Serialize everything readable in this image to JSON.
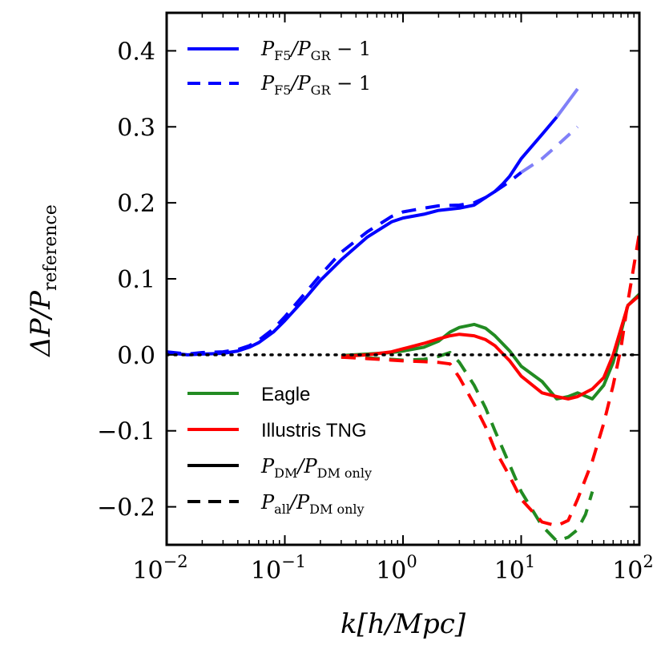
{
  "chart_data": {
    "type": "line",
    "title": "",
    "xlabel": "k[h/Mpc]",
    "ylabel": "ΔP/P_reference",
    "xscale": "log",
    "xlim": [
      0.01,
      100
    ],
    "ylim": [
      -0.25,
      0.45
    ],
    "x_ticks": [
      {
        "value": 0.01,
        "base": "10",
        "exp": "−2"
      },
      {
        "value": 0.1,
        "base": "10",
        "exp": "−1"
      },
      {
        "value": 1,
        "base": "10",
        "exp": "0"
      },
      {
        "value": 10,
        "base": "10",
        "exp": "1"
      },
      {
        "value": 100,
        "base": "10",
        "exp": "2"
      }
    ],
    "y_ticks": [
      {
        "value": 0.4,
        "label": "0.4"
      },
      {
        "value": 0.3,
        "label": "0.3"
      },
      {
        "value": 0.2,
        "label": "0.2"
      },
      {
        "value": 0.1,
        "label": "0.1"
      },
      {
        "value": 0.0,
        "label": "0.0"
      },
      {
        "value": -0.1,
        "label": "−0.1"
      },
      {
        "value": -0.2,
        "label": "−0.2"
      }
    ],
    "reference_line": {
      "y": 0,
      "style": "dotted",
      "color": "#000000"
    },
    "series": [
      {
        "name": "F5 solid",
        "color": "#0000ff",
        "style": "solid",
        "x": [
          0.01,
          0.015,
          0.02,
          0.03,
          0.04,
          0.05,
          0.06,
          0.08,
          0.1,
          0.15,
          0.2,
          0.3,
          0.5,
          0.8,
          1.0,
          1.5,
          2.0,
          3.0,
          4.0,
          5.0,
          6.0,
          7.0,
          8.0,
          10.0,
          15.0,
          20.0
        ],
        "y": [
          0.003,
          0.0,
          0.001,
          0.002,
          0.005,
          0.01,
          0.016,
          0.03,
          0.045,
          0.075,
          0.098,
          0.125,
          0.155,
          0.175,
          0.18,
          0.185,
          0.19,
          0.193,
          0.197,
          0.207,
          0.215,
          0.225,
          0.235,
          0.258,
          0.29,
          0.313
        ]
      },
      {
        "name": "F5 solid faded",
        "color": "#8080f8",
        "style": "solid",
        "x": [
          20.0,
          30.0
        ],
        "y": [
          0.313,
          0.35
        ]
      },
      {
        "name": "F5 dashed",
        "color": "#0000ff",
        "style": "dashed",
        "x": [
          0.01,
          0.015,
          0.02,
          0.03,
          0.04,
          0.05,
          0.06,
          0.08,
          0.1,
          0.15,
          0.2,
          0.3,
          0.5,
          0.8,
          1.0,
          1.5,
          2.0,
          3.0,
          4.0,
          5.0,
          6.0,
          7.0,
          8.0,
          10.0
        ],
        "y": [
          0.004,
          0.001,
          0.003,
          0.004,
          0.007,
          0.012,
          0.019,
          0.034,
          0.05,
          0.082,
          0.105,
          0.135,
          0.162,
          0.182,
          0.188,
          0.193,
          0.196,
          0.197,
          0.2,
          0.207,
          0.215,
          0.222,
          0.228,
          0.24
        ]
      },
      {
        "name": "F5 dashed faded",
        "color": "#8080f8",
        "style": "dashed",
        "x": [
          10.0,
          15.0,
          20.0,
          30.0
        ],
        "y": [
          0.24,
          0.258,
          0.275,
          0.3
        ]
      },
      {
        "name": "Eagle DM",
        "color": "#228b22",
        "style": "solid",
        "x": [
          0.3,
          0.5,
          0.8,
          1.0,
          1.5,
          2.0,
          2.5,
          3.0,
          4.0,
          5.0,
          6.0,
          8.0,
          10.0,
          15.0,
          20.0,
          25.0,
          30.0,
          40.0,
          50.0,
          60.0,
          70.0,
          80.0,
          100.0
        ],
        "y": [
          -0.001,
          0.001,
          0.003,
          0.005,
          0.01,
          0.018,
          0.03,
          0.036,
          0.04,
          0.035,
          0.025,
          0.005,
          -0.015,
          -0.035,
          -0.058,
          -0.055,
          -0.05,
          -0.058,
          -0.04,
          -0.01,
          0.03,
          0.065,
          0.08
        ]
      },
      {
        "name": "TNG DM",
        "color": "#ff0000",
        "style": "solid",
        "x": [
          0.3,
          0.5,
          0.8,
          1.0,
          1.5,
          2.0,
          2.5,
          3.0,
          4.0,
          5.0,
          6.0,
          8.0,
          10.0,
          15.0,
          20.0,
          25.0,
          30.0,
          40.0,
          50.0,
          60.0,
          70.0,
          80.0,
          100.0
        ],
        "y": [
          -0.002,
          0.0,
          0.004,
          0.008,
          0.015,
          0.021,
          0.025,
          0.027,
          0.025,
          0.02,
          0.012,
          -0.008,
          -0.028,
          -0.05,
          -0.055,
          -0.058,
          -0.055,
          -0.045,
          -0.03,
          0.0,
          0.035,
          0.065,
          0.078
        ]
      },
      {
        "name": "Eagle all",
        "color": "#228b22",
        "style": "dashed",
        "x": [
          0.3,
          0.5,
          0.8,
          1.0,
          1.5,
          2.0,
          2.5,
          3.0,
          4.0,
          5.0,
          6.0,
          8.0,
          10.0,
          15.0,
          20.0,
          25.0,
          30.0,
          35.0,
          40.0
        ],
        "y": [
          -0.003,
          -0.004,
          -0.006,
          -0.007,
          -0.006,
          -0.002,
          0.003,
          -0.01,
          -0.04,
          -0.07,
          -0.1,
          -0.145,
          -0.18,
          -0.225,
          -0.245,
          -0.24,
          -0.23,
          -0.21,
          -0.18
        ]
      },
      {
        "name": "TNG all",
        "color": "#ff0000",
        "style": "dashed",
        "x": [
          0.3,
          0.5,
          0.8,
          1.0,
          1.5,
          2.0,
          2.5,
          3.0,
          4.0,
          5.0,
          6.0,
          8.0,
          10.0,
          15.0,
          20.0,
          25.0,
          30.0,
          40.0,
          50.0,
          60.0,
          70.0,
          80.0,
          100.0
        ],
        "y": [
          -0.003,
          -0.005,
          -0.007,
          -0.008,
          -0.009,
          -0.01,
          -0.012,
          -0.03,
          -0.065,
          -0.095,
          -0.125,
          -0.16,
          -0.19,
          -0.22,
          -0.225,
          -0.218,
          -0.19,
          -0.14,
          -0.09,
          -0.04,
          0.01,
          0.07,
          0.16
        ]
      }
    ],
    "legend_upper": {
      "position": "top-left",
      "entries": [
        {
          "style": "solid",
          "color": "#0000ff",
          "label_main": "P",
          "sub1": "F5",
          "slash": "/P",
          "sub2": "GR",
          "tail": " − 1"
        },
        {
          "style": "dashed",
          "color": "#0000ff",
          "label_main": "P",
          "sub1": "F5",
          "slash": "/P",
          "sub2": "GR",
          "tail": " − 1"
        }
      ]
    },
    "legend_lower": {
      "position": "bottom-left",
      "entries": [
        {
          "style": "solid",
          "color": "#228b22",
          "label": "Eagle"
        },
        {
          "style": "solid",
          "color": "#ff0000",
          "label": "Illustris TNG"
        },
        {
          "style": "solid",
          "color": "#000000",
          "label_main": "P",
          "sub1": "DM",
          "slash": "/P",
          "sub2": "DM only"
        },
        {
          "style": "dashed",
          "color": "#000000",
          "label_main": "P",
          "sub1": "all",
          "slash": "/P",
          "sub2": "DM only"
        }
      ]
    }
  }
}
